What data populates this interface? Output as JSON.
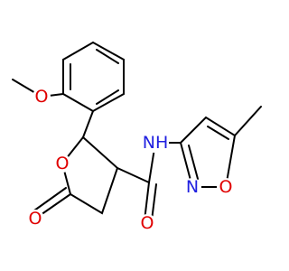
{
  "atoms": [
    {
      "label": "O"
    },
    {
      "label": "O"
    },
    {
      "label": "O"
    },
    {
      "label": "O"
    },
    {
      "label": "NH"
    },
    {
      "label": "N"
    },
    {
      "label": "O"
    }
  ]
}
